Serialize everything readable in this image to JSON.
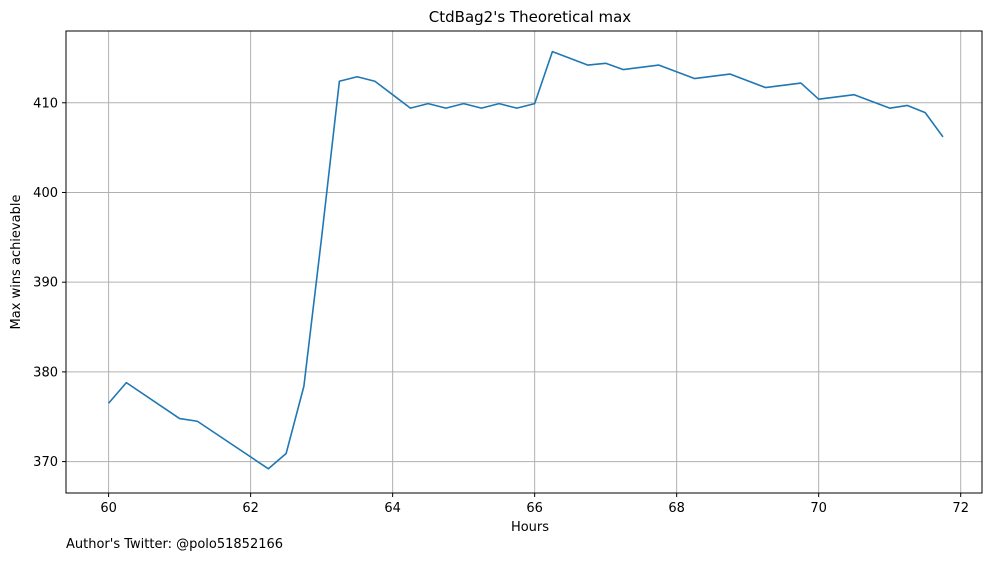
{
  "chart_data": {
    "type": "line",
    "title": "CtdBag2's Theoretical max",
    "xlabel": "Hours",
    "ylabel": "Max wins achievable",
    "xlim": [
      59.4,
      72.3
    ],
    "ylim": [
      366.5,
      418.0
    ],
    "xticks": [
      60,
      62,
      64,
      66,
      68,
      70,
      72
    ],
    "yticks": [
      370,
      380,
      390,
      400,
      410
    ],
    "grid": true,
    "line_color": "#1f77b4",
    "x": [
      60.0,
      60.25,
      61.0,
      61.25,
      62.25,
      62.5,
      62.75,
      63.0,
      63.25,
      63.5,
      63.75,
      64.0,
      64.25,
      64.5,
      64.75,
      65.0,
      65.25,
      65.5,
      65.75,
      66.0,
      66.25,
      66.75,
      67.0,
      67.25,
      67.75,
      68.25,
      68.75,
      69.25,
      69.75,
      70.0,
      70.5,
      71.0,
      71.25,
      71.5,
      71.75
    ],
    "y": [
      376.5,
      378.8,
      374.8,
      374.5,
      369.2,
      370.9,
      378.4,
      395.0,
      412.4,
      412.9,
      412.4,
      410.9,
      409.4,
      409.9,
      409.4,
      409.9,
      409.4,
      409.9,
      409.4,
      409.9,
      415.7,
      414.2,
      414.4,
      413.7,
      414.2,
      412.7,
      413.2,
      411.7,
      412.2,
      410.4,
      410.9,
      409.4,
      409.7,
      408.9,
      406.2
    ]
  },
  "footer": {
    "author_text": "Author's Twitter: @polo51852166"
  }
}
